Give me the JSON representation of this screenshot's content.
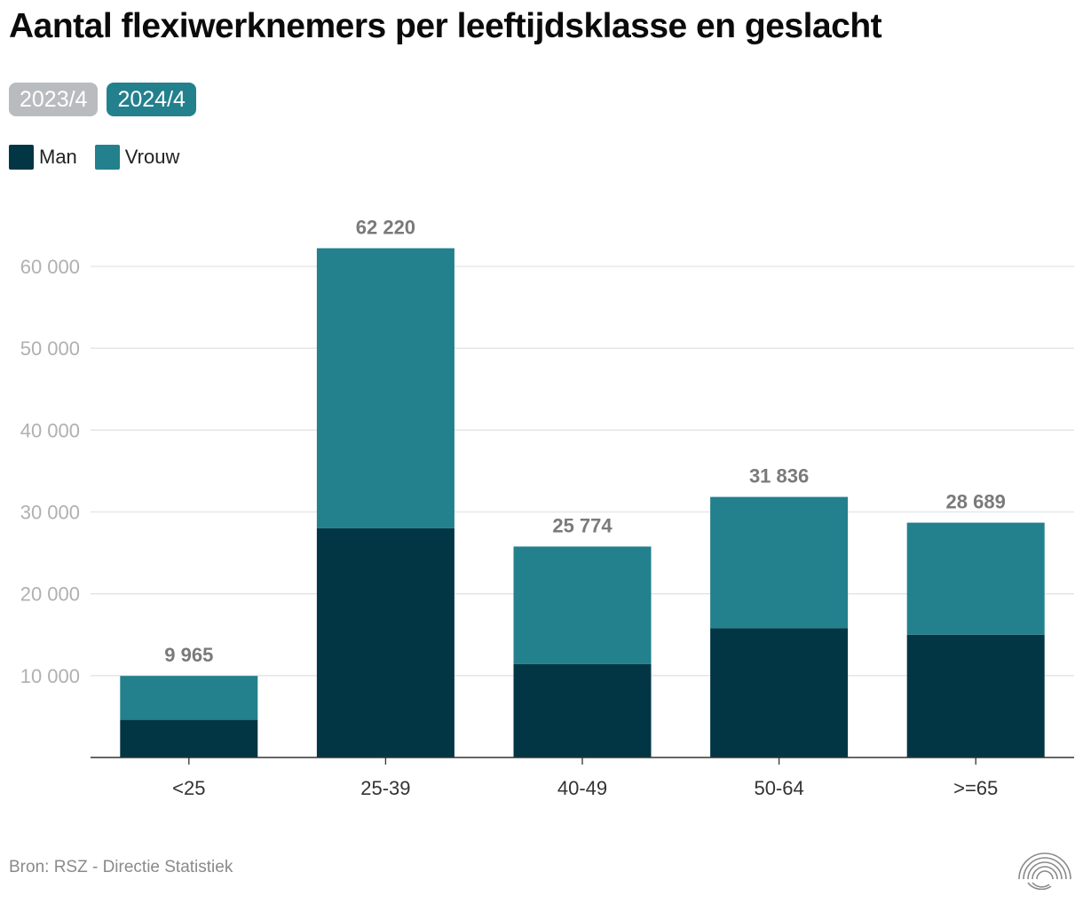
{
  "title": "Aantal flexiwerknemers per leeftijdsklasse en geslacht",
  "toggles": [
    {
      "label": "2023/4",
      "active": false
    },
    {
      "label": "2024/4",
      "active": true
    }
  ],
  "legend": [
    {
      "label": "Man",
      "color": "#033644"
    },
    {
      "label": "Vrouw",
      "color": "#23808d"
    }
  ],
  "source": "Bron: RSZ - Directie Statistiek",
  "logo_icon": "concentric-arcs-logo-icon",
  "chart_data": {
    "type": "bar",
    "stacked": true,
    "categories": [
      "<25",
      "25-39",
      "40-49",
      "50-64",
      ">=65"
    ],
    "series": [
      {
        "name": "Man",
        "color": "#033644",
        "values": [
          4600,
          28000,
          11400,
          15800,
          15000
        ]
      },
      {
        "name": "Vrouw",
        "color": "#23808d",
        "values": [
          5365,
          34220,
          14374,
          16036,
          13689
        ]
      }
    ],
    "totals": [
      9965,
      62220,
      25774,
      31836,
      28689
    ],
    "total_labels": [
      "9 965",
      "62 220",
      "25 774",
      "31 836",
      "28 689"
    ],
    "y_ticks": [
      10000,
      20000,
      30000,
      40000,
      50000,
      60000
    ],
    "y_tick_labels": [
      "10 000",
      "20 000",
      "30 000",
      "40 000",
      "50 000",
      "60 000"
    ],
    "ylim": [
      0,
      60000
    ],
    "grid": true,
    "xlabel": "",
    "ylabel": ""
  }
}
